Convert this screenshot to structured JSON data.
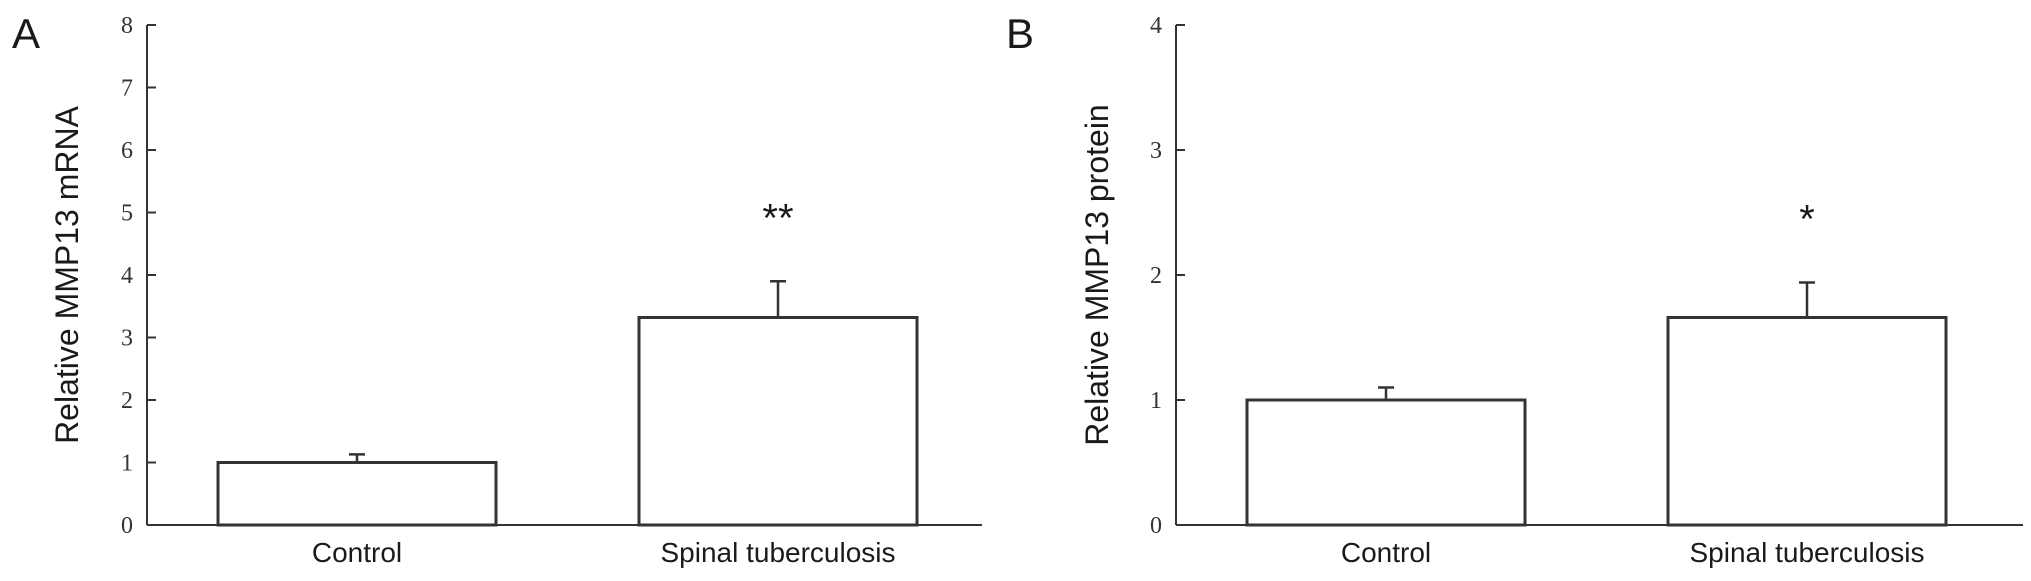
{
  "chart_data": [
    {
      "type": "bar",
      "panel": "A",
      "ylabel": "Relative MMP13 mRNA",
      "ylim": [
        0,
        8
      ],
      "yticks": [
        0,
        1,
        2,
        3,
        4,
        5,
        6,
        7,
        8
      ],
      "categories": [
        "Control",
        "Spinal tuberculosis"
      ],
      "values": [
        1.0,
        3.32
      ],
      "error": [
        0.13,
        0.58
      ],
      "significance": [
        "",
        "**"
      ]
    },
    {
      "type": "bar",
      "panel": "B",
      "ylabel": "Relative MMP13 protein",
      "ylim": [
        0,
        4
      ],
      "yticks": [
        0,
        1,
        2,
        3,
        4
      ],
      "categories": [
        "Control",
        "Spinal tuberculosis"
      ],
      "values": [
        1.0,
        1.66
      ],
      "error": [
        0.1,
        0.28
      ],
      "significance": [
        "",
        "*"
      ]
    }
  ]
}
